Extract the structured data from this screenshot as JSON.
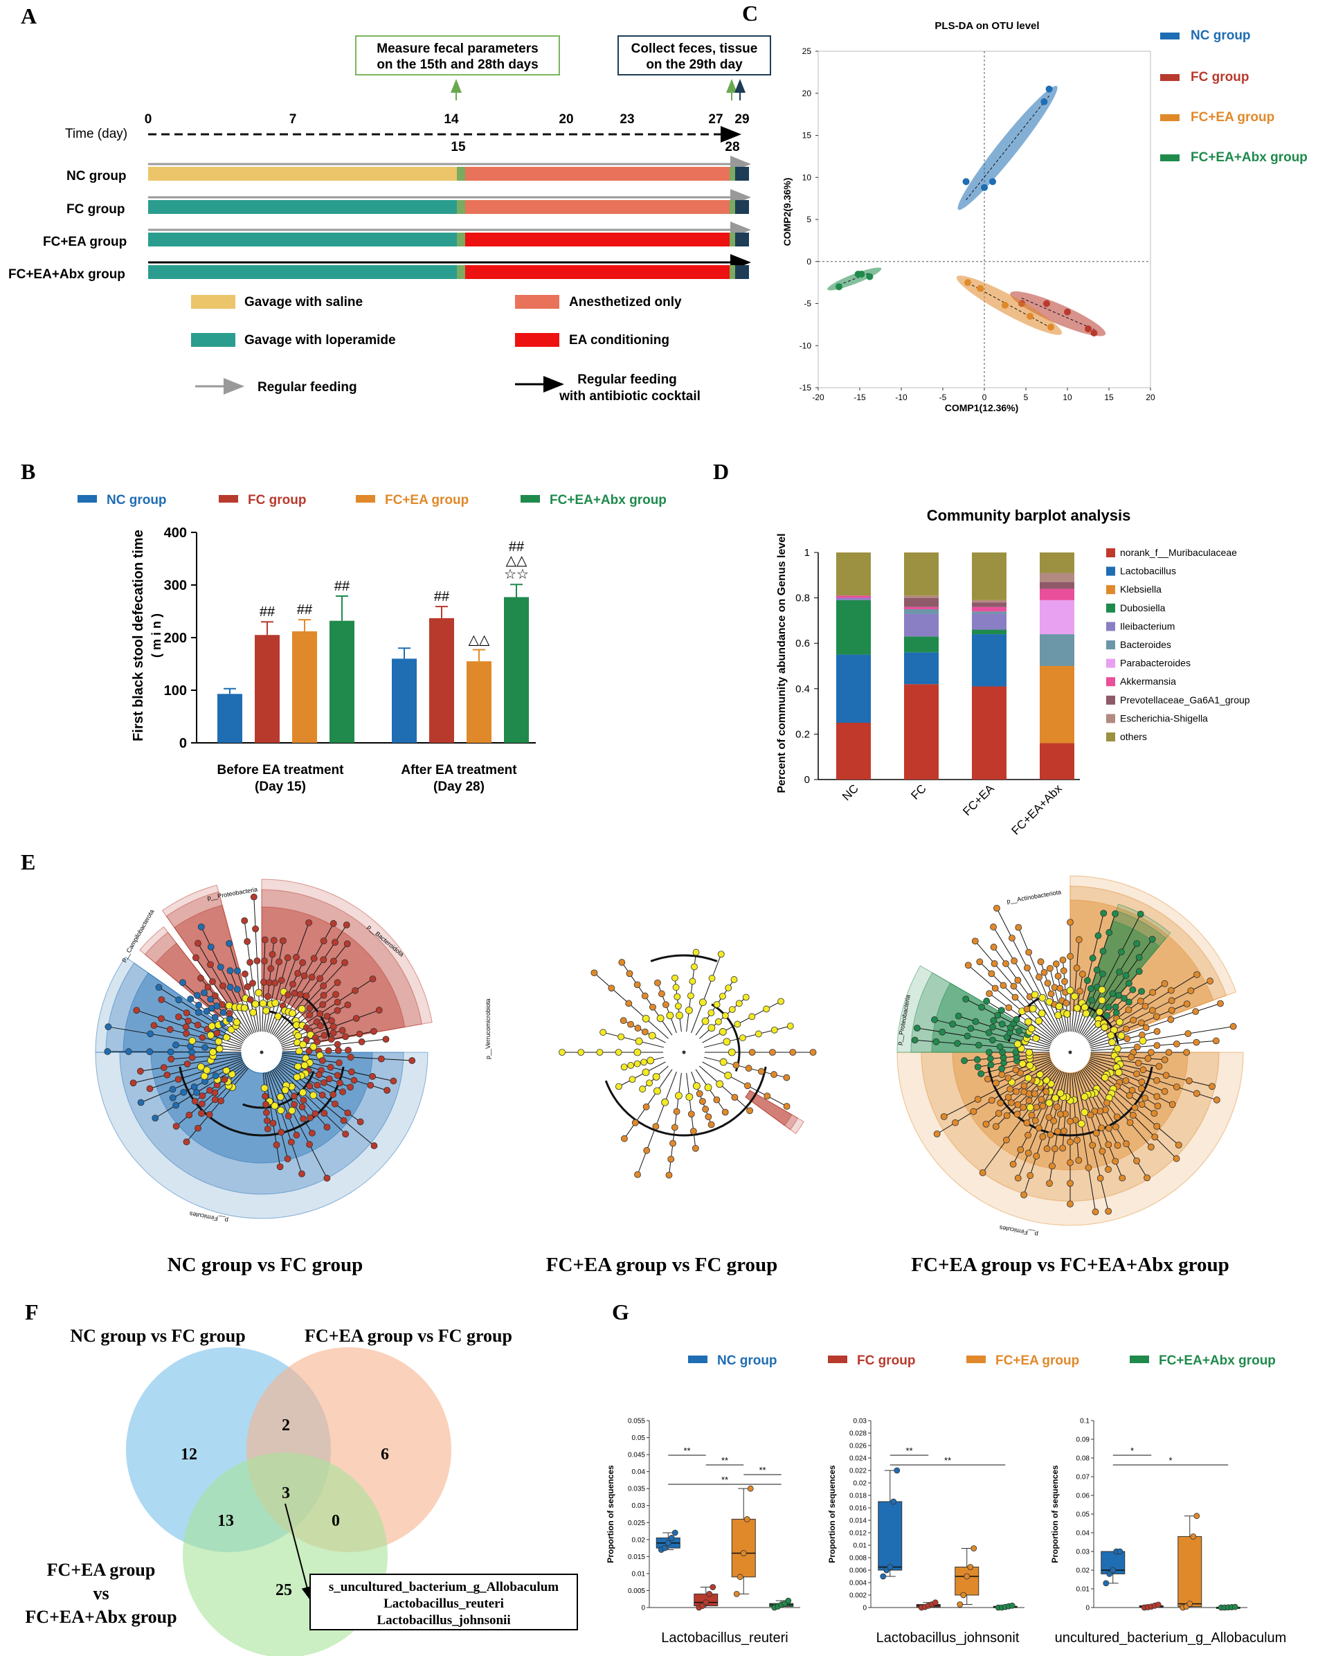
{
  "panel_letters": [
    "A",
    "B",
    "C",
    "D",
    "E",
    "F",
    "G"
  ],
  "colors": {
    "nc": "#1f6db3",
    "fc": "#b83a2d",
    "fcea": "#e0892a",
    "abx": "#1f8a4c",
    "saline": "#ecc46a",
    "loperamide": "#2a9d8f",
    "anesth": "#e9735a",
    "ea": "#ee1111",
    "yellow": "#f3ea24"
  },
  "panelA": {
    "callout_left": [
      "Measure fecal parameters",
      "on the 15th and 28th days"
    ],
    "callout_right": [
      "Collect feces, tissue",
      "on the 29th day"
    ],
    "time_label": "Time (day)",
    "ticks_top": [
      "0",
      "7",
      "14",
      "20",
      "23",
      "27",
      "29"
    ],
    "ticks_bottom": [
      "15",
      "28"
    ],
    "groups": [
      "NC group",
      "FC group",
      "FC+EA group",
      "FC+EA+Abx group"
    ],
    "legend": {
      "saline": "Gavage with saline",
      "loperamide": "Gavage with loperamide",
      "anesth": "Anesthetized only",
      "ea": "EA conditioning",
      "regular": "Regular feeding",
      "abx": [
        "Regular feeding",
        "with antibiotic cocktail"
      ]
    }
  },
  "groups_legend": [
    "NC group",
    "FC group",
    "FC+EA group",
    "FC+EA+Abx group"
  ],
  "chart_data": [
    {
      "type": "bar",
      "panel": "B",
      "title": "",
      "ylabel": "First black stool defecation time",
      "yunit": "( m i n )",
      "categories": [
        "Before EA treatment",
        "After EA treatment"
      ],
      "category_sub": [
        "(Day 15)",
        "(Day 28)"
      ],
      "ylim": [
        0,
        400
      ],
      "yticks": [
        "0",
        "100",
        "200",
        "300",
        "400"
      ],
      "series": [
        {
          "name": "NC group",
          "values": [
            93,
            160
          ],
          "errors": [
            10,
            20
          ]
        },
        {
          "name": "FC group",
          "values": [
            205,
            237
          ],
          "errors": [
            25,
            22
          ]
        },
        {
          "name": "FC+EA group",
          "values": [
            212,
            155
          ],
          "errors": [
            22,
            22
          ]
        },
        {
          "name": "FC+EA+Abx group",
          "values": [
            232,
            277
          ],
          "errors": [
            47,
            24
          ]
        }
      ],
      "annotations": {
        "hash": "##",
        "triangle": "△△",
        "star": "☆☆"
      }
    },
    {
      "type": "scatter",
      "panel": "C",
      "title": "PLS-DA on OTU level",
      "xlabel": "COMP1(12.36%)",
      "ylabel": "COMP2(9.36%)",
      "xlim": [
        -20,
        20
      ],
      "ylim": [
        -15,
        25
      ],
      "xticks": [
        "-20",
        "-15",
        "-10",
        "-5",
        "0",
        "5",
        "10",
        "15",
        "20"
      ],
      "yticks": [
        "25",
        "20",
        "15",
        "10",
        "5",
        "0",
        "-5",
        "-10",
        "-15"
      ],
      "series": [
        {
          "name": "NC group",
          "points": [
            [
              7.8,
              20.5
            ],
            [
              7.2,
              19
            ],
            [
              -2.2,
              9.5
            ],
            [
              0,
              8.8
            ],
            [
              1,
              9.5
            ]
          ]
        },
        {
          "name": "FC group",
          "points": [
            [
              4.5,
              -5
            ],
            [
              7.5,
              -5
            ],
            [
              10,
              -6
            ],
            [
              12.5,
              -8
            ],
            [
              13.2,
              -8.5
            ]
          ]
        },
        {
          "name": "FC+EA group",
          "points": [
            [
              -2,
              -2.5
            ],
            [
              -0.5,
              -3.2
            ],
            [
              2.5,
              -5.2
            ],
            [
              5.5,
              -6.5
            ],
            [
              8,
              -7.8
            ]
          ]
        },
        {
          "name": "FC+EA+Abx group",
          "points": [
            [
              -17.5,
              -3
            ],
            [
              -15.2,
              -1.5
            ],
            [
              -14.8,
              -1.5
            ],
            [
              -13.8,
              -1.8
            ]
          ]
        }
      ]
    },
    {
      "type": "bar",
      "panel": "D",
      "title": "Community barplot analysis",
      "ylabel": "Percent of community abundance on Genus level",
      "categories": [
        "NC",
        "FC",
        "FC+EA",
        "FC+EA+Abx"
      ],
      "ylim": [
        0,
        1
      ],
      "yticks": [
        "0",
        "0.2",
        "0.4",
        "0.6",
        "0.8",
        "1"
      ],
      "series": [
        {
          "name": "norank_f__Muribaculaceae",
          "color": "#c0392b",
          "values": [
            0.25,
            0.42,
            0.41,
            0.16
          ]
        },
        {
          "name": "Lactobacillus",
          "color": "#1f6db3",
          "values": [
            0.3,
            0.14,
            0.23,
            0.0
          ]
        },
        {
          "name": "Klebsiella",
          "color": "#e0892a",
          "values": [
            0.0,
            0.0,
            0.0,
            0.34
          ]
        },
        {
          "name": "Dubosiella",
          "color": "#1f8a4c",
          "values": [
            0.24,
            0.07,
            0.02,
            0.0
          ]
        },
        {
          "name": "Ileibacterium",
          "color": "#8a7fc4",
          "values": [
            0.01,
            0.1,
            0.07,
            0.0
          ]
        },
        {
          "name": "Bacteroides",
          "color": "#6b97a8",
          "values": [
            0.0,
            0.02,
            0.01,
            0.14
          ]
        },
        {
          "name": "Parabacteroides",
          "color": "#e8a0f0",
          "values": [
            0.0,
            0.0,
            0.0,
            0.15
          ]
        },
        {
          "name": "Akkermansia",
          "color": "#e94f9b",
          "values": [
            0.01,
            0.01,
            0.02,
            0.05
          ]
        },
        {
          "name": "Prevotellaceae_Ga6A1_group",
          "color": "#8e5a6a",
          "values": [
            0.0,
            0.04,
            0.02,
            0.03
          ]
        },
        {
          "name": "Escherichia-Shigella",
          "color": "#b38a80",
          "values": [
            0.0,
            0.01,
            0.01,
            0.04
          ]
        },
        {
          "name": "others",
          "color": "#9c9140",
          "values": [
            0.19,
            0.19,
            0.21,
            0.09
          ]
        }
      ]
    },
    {
      "type": "box",
      "panel": "G",
      "ylabel": "Proportion of sequences",
      "subplots": [
        {
          "xlabel": "Lactobacillus_reuteri",
          "ymax": 0.055,
          "yticks": [
            "0",
            "0.005",
            "0.01",
            "0.015",
            "0.02",
            "0.025",
            "0.03",
            "0.035",
            "0.04",
            "0.045",
            "0.05",
            "0.055"
          ],
          "boxes": [
            {
              "group": "NC group",
              "q1": 0.0175,
              "median": 0.019,
              "q3": 0.0205,
              "min": 0.017,
              "max": 0.022
            },
            {
              "group": "FC group",
              "q1": 0.0005,
              "median": 0.0015,
              "q3": 0.004,
              "min": 0.0,
              "max": 0.006
            },
            {
              "group": "FC+EA group",
              "q1": 0.009,
              "median": 0.016,
              "q3": 0.026,
              "min": 0.004,
              "max": 0.035
            },
            {
              "group": "FC+EA+Abx group",
              "q1": 0.0003,
              "median": 0.0008,
              "q3": 0.0012,
              "min": 0.0,
              "max": 0.002
            }
          ],
          "sig": [
            {
              "from": 0,
              "to": 1,
              "label": "**"
            },
            {
              "from": 1,
              "to": 2,
              "label": "**"
            },
            {
              "from": 2,
              "to": 3,
              "label": "**"
            },
            {
              "from": 0,
              "to": 3,
              "label": "**"
            }
          ]
        },
        {
          "xlabel": "Lactobacillus_johnsonit",
          "ymax": 0.03,
          "yticks": [
            "0",
            "0.002",
            "0.004",
            "0.006",
            "0.008",
            "0.01",
            "0.012",
            "0.014",
            "0.016",
            "0.018",
            "0.02",
            "0.022",
            "0.024",
            "0.026",
            "0.028",
            "0.03"
          ],
          "boxes": [
            {
              "group": "NC group",
              "q1": 0.006,
              "median": 0.0065,
              "q3": 0.017,
              "min": 0.005,
              "max": 0.022
            },
            {
              "group": "FC group",
              "q1": 0.0001,
              "median": 0.0003,
              "q3": 0.0005,
              "min": 0.0,
              "max": 0.0008
            },
            {
              "group": "FC+EA group",
              "q1": 0.002,
              "median": 0.005,
              "q3": 0.0065,
              "min": 0.0005,
              "max": 0.0095
            },
            {
              "group": "FC+EA+Abx group",
              "q1": 0.0,
              "median": 0.0001,
              "q3": 0.0002,
              "min": 0.0,
              "max": 0.0003
            }
          ],
          "sig": [
            {
              "from": 0,
              "to": 1,
              "label": "**"
            },
            {
              "from": 0,
              "to": 3,
              "label": "**"
            }
          ]
        },
        {
          "xlabel": "uncultured_bacterium_g_Allobaculum",
          "ymax": 0.1,
          "yticks": [
            "0",
            "0.01",
            "0.02",
            "0.03",
            "0.04",
            "0.05",
            "0.06",
            "0.07",
            "0.08",
            "0.09",
            "0.1"
          ],
          "boxes": [
            {
              "group": "NC group",
              "q1": 0.018,
              "median": 0.02,
              "q3": 0.03,
              "min": 0.013,
              "max": 0.03
            },
            {
              "group": "FC group",
              "q1": 0.0002,
              "median": 0.0005,
              "q3": 0.001,
              "min": 0.0,
              "max": 0.0015
            },
            {
              "group": "FC+EA group",
              "q1": 0.0005,
              "median": 0.002,
              "q3": 0.038,
              "min": 0.0,
              "max": 0.049
            },
            {
              "group": "FC+EA+Abx group",
              "q1": 0.0,
              "median": 0.0001,
              "q3": 0.0002,
              "min": 0.0,
              "max": 0.0003
            }
          ],
          "sig": [
            {
              "from": 0,
              "to": 1,
              "label": "*"
            },
            {
              "from": 0,
              "to": 3,
              "label": "*"
            }
          ]
        }
      ]
    }
  ],
  "panelE": {
    "titles": [
      "NC group vs FC group",
      "FC+EA group vs FC group",
      "FC+EA group vs FC+EA+Abx group"
    ],
    "clade_labels": {
      "left": [
        "p__Proteobacteria",
        "p__Campilobacterota",
        "p__Bacteroidota",
        "p__Firmicutes"
      ],
      "middle": [
        "p__Verrucomicrobiota"
      ],
      "right": [
        "p__Actinobacteriota",
        "p__Proteobacteria",
        "p__Firmicutes"
      ]
    }
  },
  "panelF": {
    "set_labels": [
      "NC group vs FC group",
      "FC+EA group vs FC group",
      "FC+EA group",
      "vs",
      "FC+EA+Abx group"
    ],
    "counts": {
      "a_only": "12",
      "b_only": "6",
      "c_only": "25",
      "ab": "2",
      "ac": "13",
      "bc": "0",
      "abc": "3"
    },
    "callout": [
      "s_uncultured_bacterium_g_Allobaculum",
      "Lactobacillus_reuteri",
      "Lactobacillus_johnsonii"
    ]
  }
}
